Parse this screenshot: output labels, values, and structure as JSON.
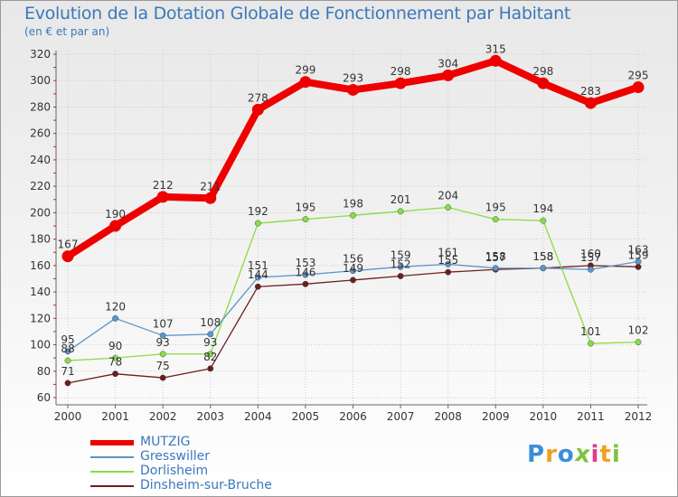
{
  "chart_data": {
    "type": "line",
    "title": "Evolution de la Dotation Globale de Fonctionnement par Habitant",
    "subtitle": "(en € et par an)",
    "xlabel": "",
    "ylabel": "",
    "categories": [
      "2000",
      "2001",
      "2002",
      "2003",
      "2004",
      "2005",
      "2006",
      "2007",
      "2008",
      "2009",
      "2010",
      "2011",
      "2012"
    ],
    "ylim": [
      60,
      320
    ],
    "yticks": [
      60,
      80,
      100,
      120,
      140,
      160,
      180,
      200,
      220,
      240,
      260,
      280,
      300,
      320
    ],
    "grid": true,
    "series": [
      {
        "name": "MUTZIG",
        "color": "#ee0000",
        "values": [
          167,
          190,
          212,
          211,
          278,
          299,
          293,
          298,
          304,
          315,
          298,
          283,
          295
        ],
        "labels": [
          "167",
          "190",
          "212",
          "211",
          "278",
          "299",
          "293",
          "298",
          "304",
          "315",
          "298",
          "283",
          "295"
        ]
      },
      {
        "name": "Gresswiller",
        "color": "#5b95c9",
        "values": [
          95,
          120,
          107,
          108,
          151,
          153,
          156,
          159,
          161,
          158,
          158,
          157,
          163
        ],
        "labels": [
          "95",
          "120",
          "107",
          "108",
          "151",
          "153",
          "156",
          "159",
          "161",
          "158",
          "158",
          "157",
          "163"
        ]
      },
      {
        "name": "Dorlisheim",
        "color": "#88dd44",
        "values": [
          88,
          90,
          93,
          93,
          192,
          195,
          198,
          201,
          204,
          195,
          194,
          101,
          102
        ],
        "labels": [
          "88",
          "90",
          "93",
          "93",
          "192",
          "195",
          "198",
          "201",
          "204",
          "195",
          "194",
          "101",
          "102"
        ]
      },
      {
        "name": "Dinsheim-sur-Bruche",
        "color": "#6b1f1f",
        "values": [
          71,
          78,
          75,
          82,
          144,
          146,
          149,
          152,
          155,
          157,
          158,
          160,
          159
        ],
        "labels": [
          "71",
          "78",
          "75",
          "82",
          "144",
          "146",
          "149",
          "152",
          "155",
          "157",
          "158",
          "160",
          "159"
        ]
      }
    ]
  },
  "logo": {
    "text": "Pro×iti",
    "letters": [
      "P",
      "r",
      "o",
      "x",
      "i",
      "t",
      "i"
    ],
    "colors": [
      "#3a8fd8",
      "#f0a020",
      "#3a8fd8",
      "#7fc241",
      "#e03c8c",
      "#f0a020",
      "#7fc241"
    ]
  }
}
